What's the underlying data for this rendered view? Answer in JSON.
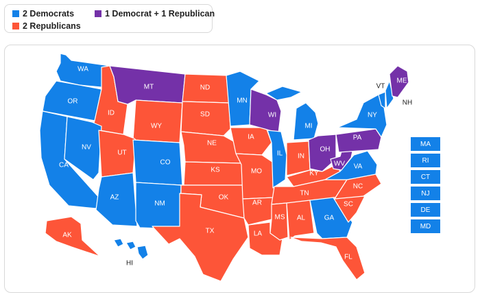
{
  "legend": [
    {
      "label": "2 Democrats",
      "color": "#1381e8"
    },
    {
      "label": "1 Democrat + 1 Republican",
      "color": "#7431a8"
    },
    {
      "label": "2 Republicans",
      "color": "#fd5538"
    }
  ],
  "colors": {
    "D": "#1381e8",
    "M": "#7431a8",
    "R": "#fd5538"
  },
  "states": [
    {
      "code": "WA",
      "party": "D"
    },
    {
      "code": "OR",
      "party": "D"
    },
    {
      "code": "CA",
      "party": "D"
    },
    {
      "code": "ID",
      "party": "R"
    },
    {
      "code": "NV",
      "party": "D"
    },
    {
      "code": "MT",
      "party": "M"
    },
    {
      "code": "WY",
      "party": "R"
    },
    {
      "code": "UT",
      "party": "R"
    },
    {
      "code": "AZ",
      "party": "D"
    },
    {
      "code": "CO",
      "party": "D"
    },
    {
      "code": "NM",
      "party": "D"
    },
    {
      "code": "ND",
      "party": "R"
    },
    {
      "code": "SD",
      "party": "R"
    },
    {
      "code": "NE",
      "party": "R"
    },
    {
      "code": "KS",
      "party": "R"
    },
    {
      "code": "OK",
      "party": "R"
    },
    {
      "code": "TX",
      "party": "R"
    },
    {
      "code": "MN",
      "party": "D"
    },
    {
      "code": "IA",
      "party": "R"
    },
    {
      "code": "MO",
      "party": "R"
    },
    {
      "code": "AR",
      "party": "R"
    },
    {
      "code": "LA",
      "party": "R"
    },
    {
      "code": "WI",
      "party": "M"
    },
    {
      "code": "IL",
      "party": "D"
    },
    {
      "code": "MI",
      "party": "D"
    },
    {
      "code": "IN",
      "party": "R"
    },
    {
      "code": "OH",
      "party": "M"
    },
    {
      "code": "KY",
      "party": "R"
    },
    {
      "code": "TN",
      "party": "R"
    },
    {
      "code": "MS",
      "party": "R"
    },
    {
      "code": "AL",
      "party": "R"
    },
    {
      "code": "GA",
      "party": "D"
    },
    {
      "code": "FL",
      "party": "R"
    },
    {
      "code": "SC",
      "party": "R"
    },
    {
      "code": "NC",
      "party": "R"
    },
    {
      "code": "VA",
      "party": "D"
    },
    {
      "code": "WV",
      "party": "M"
    },
    {
      "code": "PA",
      "party": "M"
    },
    {
      "code": "NY",
      "party": "D"
    },
    {
      "code": "VT",
      "party": "D"
    },
    {
      "code": "NH",
      "party": "D"
    },
    {
      "code": "ME",
      "party": "M"
    },
    {
      "code": "AK",
      "party": "R"
    },
    {
      "code": "HI",
      "party": "D"
    },
    {
      "code": "MA",
      "party": "D"
    },
    {
      "code": "RI",
      "party": "D"
    },
    {
      "code": "CT",
      "party": "D"
    },
    {
      "code": "NJ",
      "party": "D"
    },
    {
      "code": "DE",
      "party": "D"
    },
    {
      "code": "MD",
      "party": "D"
    }
  ]
}
